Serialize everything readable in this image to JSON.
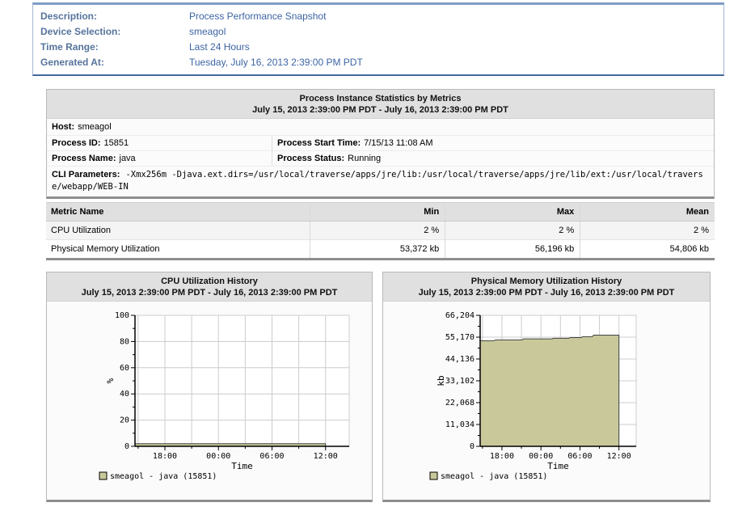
{
  "report_info": {
    "rows": [
      {
        "label": "Description:",
        "value": "Process Performance Snapshot"
      },
      {
        "label": "Device Selection:",
        "value": "smeagol"
      },
      {
        "label": "Time Range:",
        "value": "Last 24 Hours"
      },
      {
        "label": "Generated At:",
        "value": "Tuesday, July 16, 2013 2:39:00 PM PDT"
      }
    ]
  },
  "process_panel": {
    "title": "Process Instance Statistics by Metrics",
    "subtitle": "July 15, 2013 2:39:00 PM PDT - July 16, 2013 2:39:00 PM PDT",
    "host_label": "Host:",
    "host": "smeagol",
    "process_id_label": "Process ID:",
    "process_id": "15851",
    "start_time_label": "Process Start Time:",
    "start_time": "7/15/13 11:08 AM",
    "process_name_label": "Process Name:",
    "process_name": "java",
    "status_label": "Process Status:",
    "status": "Running",
    "cli_label": "CLI Parameters:",
    "cli_value": "-Xmx256m -Djava.ext.dirs=/usr/local/traverse/apps/jre/lib:/usr/local/traverse/apps/jre/lib/ext:/usr/local/traverse/webapp/WEB-IN"
  },
  "metrics_table": {
    "columns": [
      "Metric Name",
      "Min",
      "Max",
      "Mean"
    ],
    "rows": [
      {
        "name": "CPU Utilization",
        "min": "2 %",
        "max": "2 %",
        "mean": "2 %"
      },
      {
        "name": "Physical Memory Utilization",
        "min": "53,372 kb",
        "max": "56,196 kb",
        "mean": "54,806 kb"
      }
    ]
  },
  "chart_data": [
    {
      "type": "area",
      "title": "CPU Utilization History",
      "subtitle": "July 15, 2013 2:39:00 PM PDT - July 16, 2013 2:39:00 PM PDT",
      "xlabel": "Time",
      "ylabel": "%",
      "ylim": [
        0,
        100
      ],
      "x_range_hours": [
        14.65,
        38.65
      ],
      "grid": true,
      "legend_position": "bottom-left",
      "y_ticks": [
        {
          "v": 0,
          "label": "0"
        },
        {
          "v": 20,
          "label": "20"
        },
        {
          "v": 40,
          "label": "40"
        },
        {
          "v": 60,
          "label": "60"
        },
        {
          "v": 80,
          "label": "80"
        },
        {
          "v": 100,
          "label": "100"
        }
      ],
      "x_ticks": [
        {
          "h": 15,
          "label": ""
        },
        {
          "h": 18,
          "label": "18:00"
        },
        {
          "h": 21,
          "label": ""
        },
        {
          "h": 24,
          "label": "00:00"
        },
        {
          "h": 27,
          "label": ""
        },
        {
          "h": 30,
          "label": "06:00"
        },
        {
          "h": 33,
          "label": ""
        },
        {
          "h": 36,
          "label": "12:00"
        }
      ],
      "series": [
        {
          "name": "smeagol - java (15851)",
          "color": "#c8c89a",
          "points": [
            [
              14.65,
              2
            ],
            [
              36.0,
              2
            ]
          ]
        }
      ],
      "legend": {
        "label": "smeagol - java (15851)",
        "color": "#c8c89a"
      }
    },
    {
      "type": "area",
      "title": "Physical Memory Utilization History",
      "subtitle": "July 15, 2013 2:39:00 PM PDT - July 16, 2013 2:39:00 PM PDT",
      "xlabel": "Time",
      "ylabel": "kb",
      "ylim": [
        0,
        66204
      ],
      "x_range_hours": [
        14.65,
        38.65
      ],
      "grid": true,
      "legend_position": "bottom-left",
      "y_ticks": [
        {
          "v": 0,
          "label": "0"
        },
        {
          "v": 11034,
          "label": "11,034"
        },
        {
          "v": 22068,
          "label": "22,068"
        },
        {
          "v": 33102,
          "label": "33,102"
        },
        {
          "v": 44136,
          "label": "44,136"
        },
        {
          "v": 55170,
          "label": "55,170"
        },
        {
          "v": 66204,
          "label": "66,204"
        }
      ],
      "x_ticks": [
        {
          "h": 15,
          "label": ""
        },
        {
          "h": 18,
          "label": "18:00"
        },
        {
          "h": 21,
          "label": ""
        },
        {
          "h": 24,
          "label": "00:00"
        },
        {
          "h": 27,
          "label": ""
        },
        {
          "h": 30,
          "label": "06:00"
        },
        {
          "h": 33,
          "label": ""
        },
        {
          "h": 36,
          "label": "12:00"
        }
      ],
      "series": [
        {
          "name": "smeagol - java (15851)",
          "color": "#c8c89a",
          "points": [
            [
              14.65,
              53372
            ],
            [
              16.8,
              53372
            ],
            [
              17.0,
              53800
            ],
            [
              21.1,
              53800
            ],
            [
              21.3,
              54300
            ],
            [
              25.7,
              54300
            ],
            [
              25.9,
              54600
            ],
            [
              28.3,
              54600
            ],
            [
              28.5,
              54950
            ],
            [
              30.2,
              54950
            ],
            [
              30.4,
              55400
            ],
            [
              31.9,
              55400
            ],
            [
              32.1,
              56196
            ],
            [
              36.0,
              56196
            ]
          ]
        }
      ],
      "legend": {
        "label": "smeagol - java (15851)",
        "color": "#c8c89a"
      }
    }
  ],
  "colors": {
    "info_label_blue": "#56749c",
    "info_value_blue": "#3c64a4",
    "panel_header_gray": "#e0e0e0",
    "series_fill_khaki": "#c8c89a",
    "gridline_gray": "#cccccc"
  }
}
